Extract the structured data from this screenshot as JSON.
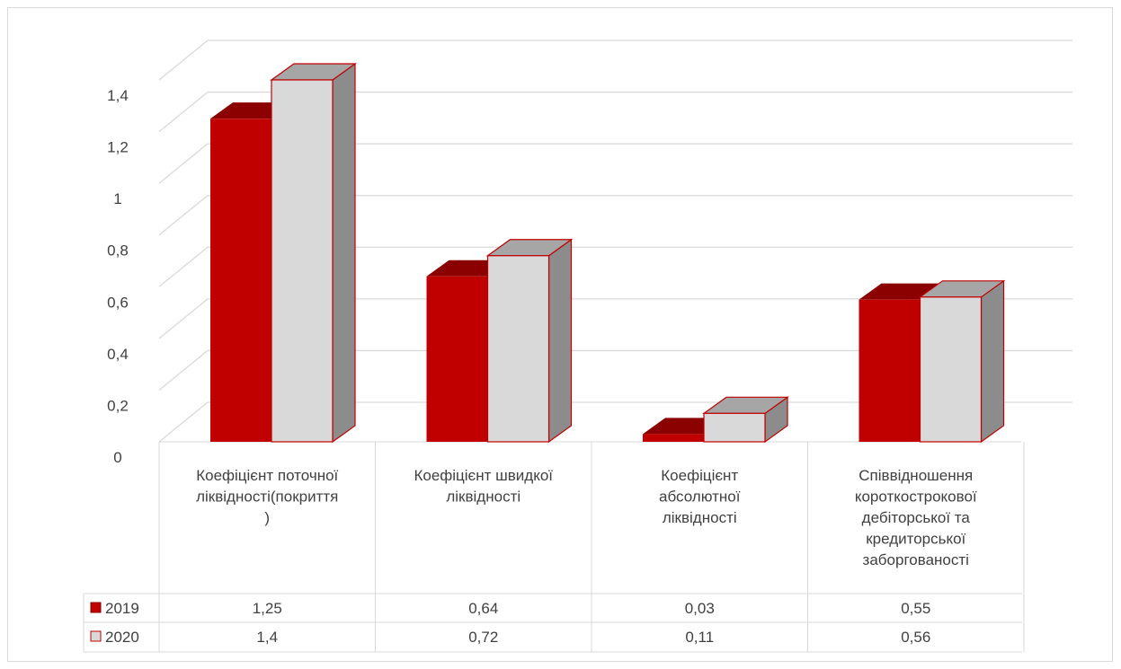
{
  "chart_data": {
    "type": "bar",
    "subtype": "clustered-3d-column-with-data-table",
    "categories": [
      "Коефіцієнт поточної ліквідності(покриття )",
      "Коефіцієнт швидкої ліквідності",
      "Коефіцієнт абсолютної ліквідності",
      "Співвідношення короткострокової дебіторської та кредиторської заборгованості"
    ],
    "category_lines": [
      [
        "Коефіцієнт  поточної",
        "ліквідності(покриття",
        ")"
      ],
      [
        "Коефіцієнт швидкої",
        "ліквідності"
      ],
      [
        "Коефіцієнт",
        "абсолютної",
        "ліквідності"
      ],
      [
        "Співвідношення",
        "короткострокової",
        "дебіторської та",
        "кредиторської",
        "заборгованості"
      ]
    ],
    "series": [
      {
        "name": "2019",
        "values": [
          1.25,
          0.64,
          0.03,
          0.55
        ],
        "value_labels": [
          "1,25",
          "0,64",
          "0,03",
          "0,55"
        ],
        "color": "#C00000",
        "top_color": "#8B0000",
        "side_color": "#8B0000"
      },
      {
        "name": "2020",
        "values": [
          1.4,
          0.72,
          0.11,
          0.56
        ],
        "value_labels": [
          "1,4",
          "0,72",
          "0,11",
          "0,56"
        ],
        "color": "#D9D9D9",
        "top_color": "#A6A6A6",
        "side_color": "#8C8C8C",
        "edge": "#C00000"
      }
    ],
    "y_ticks": [
      0,
      0.2,
      0.4,
      0.6,
      0.8,
      1,
      1.2,
      1.4
    ],
    "y_tick_labels": [
      "0",
      "0,2",
      "0,4",
      "0,6",
      "0,8",
      "1",
      "1,2",
      "1,4"
    ],
    "ylim": [
      0,
      1.4
    ],
    "grid": true,
    "legend": "data-table",
    "title": "",
    "xlabel": "",
    "ylabel": ""
  }
}
